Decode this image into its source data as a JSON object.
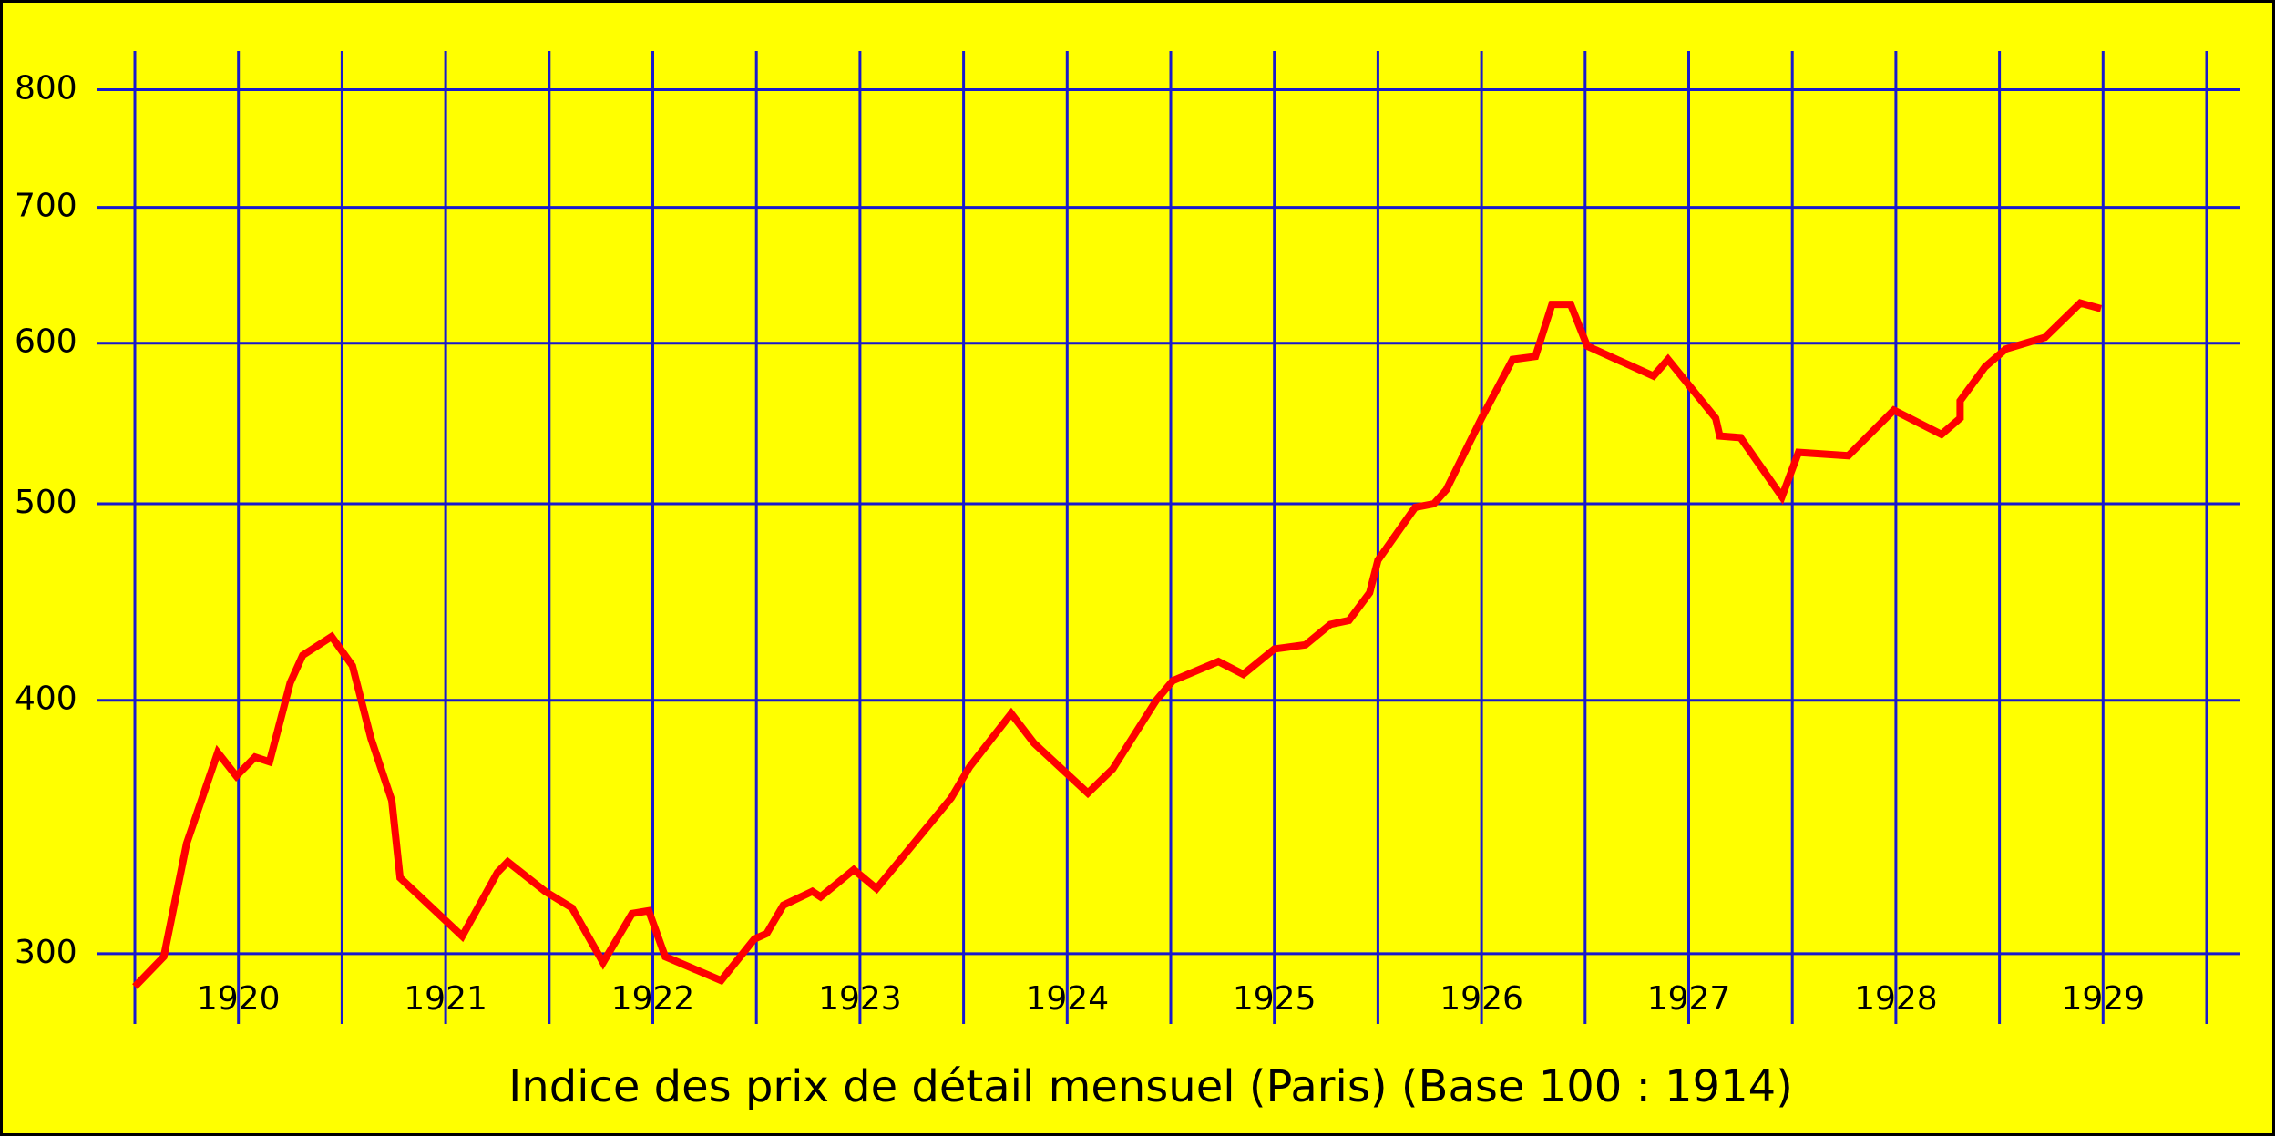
{
  "chart_data": {
    "type": "line",
    "title": "Indice des prix de détail mensuel (Paris) (Base 100 : 1914)",
    "log_y": true,
    "grid": true,
    "xlim": [
      1919.5,
      1929.5
    ],
    "xticks": [
      1920,
      1921,
      1922,
      1923,
      1924,
      1925,
      1926,
      1927,
      1928,
      1929
    ],
    "ylim": [
      277,
      836
    ],
    "yticks": [
      300,
      400,
      500,
      600,
      700,
      800
    ],
    "grid_color": "#1a1acc",
    "background": "#ffff00",
    "series": [
      {
        "color": "#ff0000",
        "x": [
          1919.5,
          1919.64,
          1919.75,
          1919.9,
          1919.99,
          1920.08,
          1920.15,
          1920.25,
          1920.31,
          1920.45,
          1920.55,
          1920.64,
          1920.74,
          1920.78,
          1921.08,
          1921.25,
          1921.3,
          1921.48,
          1921.61,
          1921.76,
          1921.9,
          1921.98,
          1922.06,
          1922.33,
          1922.49,
          1922.55,
          1922.63,
          1922.77,
          1922.81,
          1922.97,
          1923.08,
          1923.28,
          1923.44,
          1923.53,
          1923.73,
          1923.84,
          1924.1,
          1924.22,
          1924.43,
          1924.51,
          1924.73,
          1924.85,
          1925.0,
          1925.15,
          1925.27,
          1925.36,
          1925.46,
          1925.5,
          1925.68,
          1925.77,
          1925.83,
          1926.0,
          1926.15,
          1926.26,
          1926.34,
          1926.43,
          1926.51,
          1926.83,
          1926.9,
          1927.13,
          1927.15,
          1927.25,
          1927.45,
          1927.53,
          1927.77,
          1927.99,
          1928.22,
          1928.31,
          1928.31,
          1928.43,
          1928.53,
          1928.72,
          1928.89,
          1928.99
        ],
        "values": [
          289,
          299,
          340,
          377,
          367,
          375,
          373,
          408,
          421,
          430,
          416,
          383,
          357,
          327,
          306,
          329,
          333,
          322,
          316,
          297,
          314,
          315,
          299,
          291,
          305,
          307,
          317,
          322,
          320,
          330,
          323,
          342,
          358,
          371,
          394,
          381,
          360,
          370,
          400,
          409,
          418,
          412,
          424,
          426,
          436,
          438,
          452,
          469,
          498,
          500,
          508,
          551,
          589,
          591,
          627,
          627,
          598,
          578,
          589,
          551,
          540,
          539,
          504,
          530,
          528,
          556,
          541,
          551,
          562,
          584,
          596,
          604,
          628,
          624
        ]
      }
    ]
  }
}
